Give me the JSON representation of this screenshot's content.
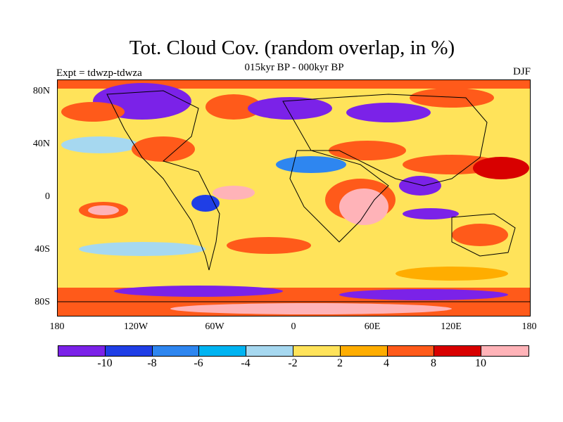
{
  "title": "Tot. Cloud Cov. (random overlap, in %)",
  "subtitle": "015kyr BP - 000kyr BP",
  "experiment": "Expt = tdwzp-tdwza",
  "season": "DJF",
  "axes": {
    "y_labels": [
      "80N",
      "40N",
      "0",
      "40S",
      "80S"
    ],
    "x_labels": [
      "180",
      "120W",
      "60W",
      "0",
      "60E",
      "120E",
      "180"
    ]
  },
  "colorbar": {
    "labels": [
      "-10",
      "-8",
      "-6",
      "-4",
      "-2",
      "2",
      "4",
      "8",
      "10"
    ],
    "colors": [
      "#7b22e8",
      "#1f3ee6",
      "#2e86f0",
      "#00b4f2",
      "#a6d8f0",
      "#ffe35a",
      "#ffad00",
      "#ff5a1a",
      "#d80000",
      "#ffb3b8"
    ]
  }
}
